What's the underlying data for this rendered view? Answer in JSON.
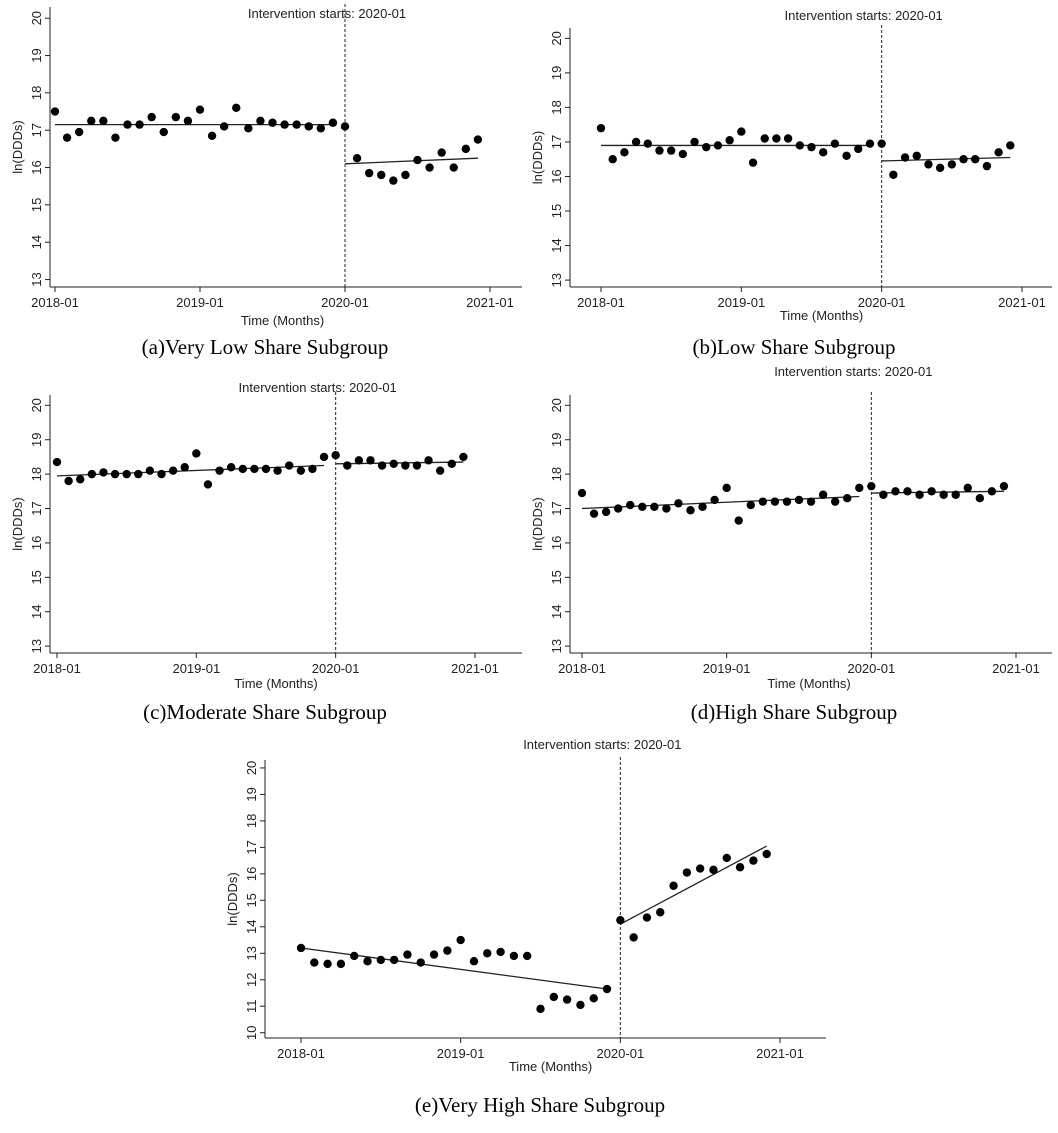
{
  "figure": {
    "captions": [
      "(a)Very Low Share Subgroup",
      "(b)Low Share Subgroup",
      "(c)Moderate Share Subgroup",
      "(d)High Share Subgroup",
      "(e)Very High Share Subgroup"
    ]
  },
  "chart_data": [
    {
      "type": "scatter",
      "title": "",
      "annotation": "Intervention starts: 2020-01",
      "intervention_x": "2020-01",
      "xlabel": "Time (Months)",
      "ylabel": "ln(DDDs)",
      "xticks": [
        "2018-01",
        "2019-01",
        "2020-01",
        "2021-01"
      ],
      "yticks": [
        13,
        14,
        15,
        16,
        17,
        18,
        19,
        20
      ],
      "ylim": [
        12.8,
        20.3
      ],
      "grid": false,
      "x": [
        "2018-01",
        "2018-02",
        "2018-03",
        "2018-04",
        "2018-05",
        "2018-06",
        "2018-07",
        "2018-08",
        "2018-09",
        "2018-10",
        "2018-11",
        "2018-12",
        "2019-01",
        "2019-02",
        "2019-03",
        "2019-04",
        "2019-05",
        "2019-06",
        "2019-07",
        "2019-08",
        "2019-09",
        "2019-10",
        "2019-11",
        "2019-12",
        "2020-01",
        "2020-02",
        "2020-03",
        "2020-04",
        "2020-05",
        "2020-06",
        "2020-07",
        "2020-08",
        "2020-09",
        "2020-10",
        "2020-11",
        "2020-12"
      ],
      "values": [
        17.5,
        16.8,
        16.95,
        17.25,
        17.25,
        16.8,
        17.15,
        17.15,
        17.35,
        16.95,
        17.35,
        17.25,
        17.55,
        16.85,
        17.1,
        17.6,
        17.05,
        17.25,
        17.2,
        17.15,
        17.15,
        17.1,
        17.05,
        17.2,
        17.1,
        16.25,
        15.85,
        15.8,
        15.65,
        15.8,
        16.2,
        16.0,
        16.4,
        16.0,
        16.5,
        16.75
      ],
      "trend_pre": {
        "start": [
          "2018-01",
          17.15
        ],
        "end": [
          "2019-12",
          17.15
        ]
      },
      "trend_post": {
        "start": [
          "2020-01",
          16.1
        ],
        "end": [
          "2020-12",
          16.25
        ]
      }
    },
    {
      "type": "scatter",
      "title": "",
      "annotation": "Intervention starts: 2020-01",
      "intervention_x": "2020-01",
      "xlabel": "Time (Months)",
      "ylabel": "ln(DDDs)",
      "xticks": [
        "2018-01",
        "2019-01",
        "2020-01",
        "2021-01"
      ],
      "yticks": [
        13,
        14,
        15,
        16,
        17,
        18,
        19,
        20
      ],
      "ylim": [
        12.8,
        20.3
      ],
      "grid": false,
      "x": [
        "2018-01",
        "2018-02",
        "2018-03",
        "2018-04",
        "2018-05",
        "2018-06",
        "2018-07",
        "2018-08",
        "2018-09",
        "2018-10",
        "2018-11",
        "2018-12",
        "2019-01",
        "2019-02",
        "2019-03",
        "2019-04",
        "2019-05",
        "2019-06",
        "2019-07",
        "2019-08",
        "2019-09",
        "2019-10",
        "2019-11",
        "2019-12",
        "2020-01",
        "2020-02",
        "2020-03",
        "2020-04",
        "2020-05",
        "2020-06",
        "2020-07",
        "2020-08",
        "2020-09",
        "2020-10",
        "2020-11",
        "2020-12"
      ],
      "values": [
        17.4,
        16.5,
        16.7,
        17.0,
        16.95,
        16.75,
        16.75,
        16.65,
        17.0,
        16.85,
        16.9,
        17.05,
        17.3,
        16.4,
        17.1,
        17.1,
        17.1,
        16.9,
        16.85,
        16.7,
        16.95,
        16.6,
        16.8,
        16.95,
        16.95,
        16.05,
        16.55,
        16.6,
        16.35,
        16.25,
        16.35,
        16.5,
        16.5,
        16.3,
        16.7,
        16.9
      ],
      "trend_pre": {
        "start": [
          "2018-01",
          16.9
        ],
        "end": [
          "2019-12",
          16.9
        ]
      },
      "trend_post": {
        "start": [
          "2020-01",
          16.45
        ],
        "end": [
          "2020-12",
          16.55
        ]
      }
    },
    {
      "type": "scatter",
      "title": "",
      "annotation": "Intervention starts: 2020-01",
      "intervention_x": "2020-01",
      "xlabel": "Time (Months)",
      "ylabel": "ln(DDDs)",
      "xticks": [
        "2018-01",
        "2019-01",
        "2020-01",
        "2021-01"
      ],
      "yticks": [
        13,
        14,
        15,
        16,
        17,
        18,
        19,
        20
      ],
      "ylim": [
        12.8,
        20.3
      ],
      "grid": false,
      "x": [
        "2018-01",
        "2018-02",
        "2018-03",
        "2018-04",
        "2018-05",
        "2018-06",
        "2018-07",
        "2018-08",
        "2018-09",
        "2018-10",
        "2018-11",
        "2018-12",
        "2019-01",
        "2019-02",
        "2019-03",
        "2019-04",
        "2019-05",
        "2019-06",
        "2019-07",
        "2019-08",
        "2019-09",
        "2019-10",
        "2019-11",
        "2019-12",
        "2020-01",
        "2020-02",
        "2020-03",
        "2020-04",
        "2020-05",
        "2020-06",
        "2020-07",
        "2020-08",
        "2020-09",
        "2020-10",
        "2020-11",
        "2020-12"
      ],
      "values": [
        18.35,
        17.8,
        17.85,
        18.0,
        18.05,
        18.0,
        18.0,
        18.0,
        18.1,
        18.0,
        18.1,
        18.2,
        18.6,
        17.7,
        18.1,
        18.2,
        18.15,
        18.15,
        18.15,
        18.1,
        18.25,
        18.1,
        18.15,
        18.5,
        18.55,
        18.25,
        18.4,
        18.4,
        18.25,
        18.3,
        18.25,
        18.25,
        18.4,
        18.1,
        18.3,
        18.5
      ],
      "trend_pre": {
        "start": [
          "2018-01",
          17.95
        ],
        "end": [
          "2019-12",
          18.25
        ]
      },
      "trend_post": {
        "start": [
          "2020-01",
          18.3
        ],
        "end": [
          "2020-12",
          18.35
        ]
      }
    },
    {
      "type": "scatter",
      "title": "",
      "annotation": "Intervention starts: 2020-01",
      "intervention_x": "2020-01",
      "xlabel": "Time (Months)",
      "ylabel": "ln(DDDs)",
      "xticks": [
        "2018-01",
        "2019-01",
        "2020-01",
        "2021-01"
      ],
      "yticks": [
        13,
        14,
        15,
        16,
        17,
        18,
        19,
        20
      ],
      "ylim": [
        12.8,
        20.3
      ],
      "grid": false,
      "x": [
        "2018-01",
        "2018-02",
        "2018-03",
        "2018-04",
        "2018-05",
        "2018-06",
        "2018-07",
        "2018-08",
        "2018-09",
        "2018-10",
        "2018-11",
        "2018-12",
        "2019-01",
        "2019-02",
        "2019-03",
        "2019-04",
        "2019-05",
        "2019-06",
        "2019-07",
        "2019-08",
        "2019-09",
        "2019-10",
        "2019-11",
        "2019-12",
        "2020-01",
        "2020-02",
        "2020-03",
        "2020-04",
        "2020-05",
        "2020-06",
        "2020-07",
        "2020-08",
        "2020-09",
        "2020-10",
        "2020-11",
        "2020-12"
      ],
      "values": [
        17.45,
        16.85,
        16.9,
        17.0,
        17.1,
        17.05,
        17.05,
        17.0,
        17.15,
        16.95,
        17.05,
        17.25,
        17.6,
        16.65,
        17.1,
        17.2,
        17.2,
        17.2,
        17.25,
        17.2,
        17.4,
        17.2,
        17.3,
        17.6,
        17.65,
        17.4,
        17.5,
        17.5,
        17.4,
        17.5,
        17.4,
        17.4,
        17.6,
        17.3,
        17.5,
        17.65
      ],
      "trend_pre": {
        "start": [
          "2018-01",
          17.0
        ],
        "end": [
          "2019-12",
          17.35
        ]
      },
      "trend_post": {
        "start": [
          "2020-01",
          17.45
        ],
        "end": [
          "2020-12",
          17.5
        ]
      }
    },
    {
      "type": "scatter",
      "title": "",
      "annotation": "Intervention starts: 2020-01",
      "intervention_x": "2020-01",
      "xlabel": "Time (Months)",
      "ylabel": "ln(DDDs)",
      "xticks": [
        "2018-01",
        "2019-01",
        "2020-01",
        "2021-01"
      ],
      "yticks": [
        10,
        11,
        12,
        13,
        14,
        15,
        16,
        17,
        18,
        19,
        20
      ],
      "ylim": [
        9.8,
        20.3
      ],
      "grid": false,
      "x": [
        "2018-01",
        "2018-02",
        "2018-03",
        "2018-04",
        "2018-05",
        "2018-06",
        "2018-07",
        "2018-08",
        "2018-09",
        "2018-10",
        "2018-11",
        "2018-12",
        "2019-01",
        "2019-02",
        "2019-03",
        "2019-04",
        "2019-05",
        "2019-06",
        "2019-07",
        "2019-08",
        "2019-09",
        "2019-10",
        "2019-11",
        "2019-12",
        "2020-01",
        "2020-02",
        "2020-03",
        "2020-04",
        "2020-05",
        "2020-06",
        "2020-07",
        "2020-08",
        "2020-09",
        "2020-10",
        "2020-11",
        "2020-12"
      ],
      "values": [
        13.2,
        12.65,
        12.6,
        12.6,
        12.9,
        12.7,
        12.75,
        12.75,
        12.95,
        12.65,
        12.95,
        13.1,
        13.5,
        12.7,
        13.0,
        13.05,
        12.9,
        12.9,
        10.9,
        11.35,
        11.25,
        11.05,
        11.3,
        11.65,
        14.25,
        13.6,
        14.35,
        14.55,
        15.55,
        16.05,
        16.2,
        16.15,
        16.6,
        16.25,
        16.5,
        16.75
      ],
      "trend_pre": {
        "start": [
          "2018-01",
          13.2
        ],
        "end": [
          "2019-12",
          11.65
        ]
      },
      "trend_post": {
        "start": [
          "2020-01",
          14.1
        ],
        "end": [
          "2020-12",
          17.05
        ]
      }
    }
  ]
}
